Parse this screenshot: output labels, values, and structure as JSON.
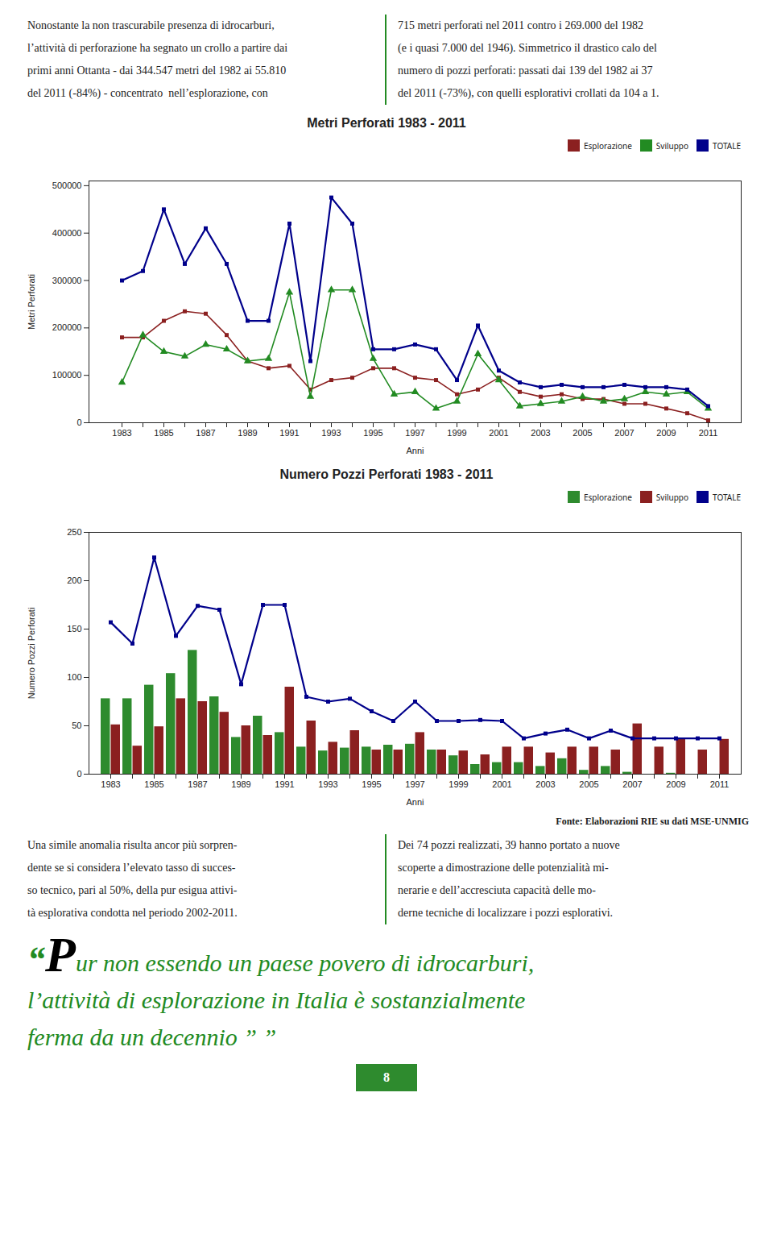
{
  "chart_data": [
    {
      "type": "line",
      "title": "Metri Perforati 1983 - 2011",
      "x_label": "Anni",
      "y_label": "Metri Perforati",
      "categories": [
        "1983",
        null,
        "1985",
        null,
        "1987",
        null,
        "1989",
        null,
        "1991",
        null,
        "1993",
        null,
        "1995",
        null,
        "1997",
        null,
        "1999",
        null,
        "2001",
        null,
        "2003",
        null,
        "2005",
        null,
        "2007",
        null,
        "2009",
        null,
        "2011"
      ],
      "series": [
        {
          "name": "Esplorazione",
          "color": "#8B2020",
          "marker": "square",
          "values": [
            180000,
            180000,
            215000,
            235000,
            230000,
            185000,
            130000,
            115000,
            120000,
            70000,
            90000,
            95000,
            115000,
            115000,
            95000,
            90000,
            60000,
            70000,
            95000,
            65000,
            55000,
            60000,
            50000,
            50000,
            40000,
            40000,
            30000,
            20000,
            5000
          ]
        },
        {
          "name": "Sviluppo",
          "color": "#228B22",
          "marker": "triangle",
          "values": [
            85000,
            185000,
            150000,
            140000,
            165000,
            155000,
            130000,
            135000,
            275000,
            55000,
            280000,
            280000,
            135000,
            60000,
            65000,
            30000,
            45000,
            145000,
            90000,
            35000,
            40000,
            45000,
            55000,
            45000,
            50000,
            65000,
            60000,
            65000,
            30000
          ]
        },
        {
          "name": "TOTALE",
          "color": "#00008B",
          "marker": "square",
          "values": [
            300000,
            320000,
            450000,
            335000,
            410000,
            335000,
            215000,
            215000,
            420000,
            130000,
            475000,
            420000,
            155000,
            155000,
            165000,
            155000,
            90000,
            205000,
            110000,
            85000,
            75000,
            80000,
            75000,
            75000,
            80000,
            75000,
            75000,
            70000,
            35000
          ]
        }
      ],
      "ylim": [
        0,
        510000
      ],
      "yticks": [
        0,
        100000,
        200000,
        300000,
        400000,
        500000
      ],
      "grid": false,
      "legend": "upper right",
      "annotations": [
        "Nonostante la non trascurabile presenza di idrocarburi,\nl’attività di perforazione ha segnato un crollo a partire dai\nprimi anni Ottanta - dai 344.547 metri del 1982 ai 55.810\ndel 2011 (-84%) - concentrato  nell’esplorazione, con",
        "715 metri perforati nel 2011 contro i 269.000 del 1982\n(e i quasi 7.000 del 1946). Simmetrico il drastico calo del\nnumero di pozzi perforati: passati dai 139 del 1982 ai 37\ndel 2011 (-73%), con quelli esplorativi crollati da 104 a 1."
      ]
    },
    {
      "type": "bar",
      "title": "Numero Pozzi Perforati 1983 - 2011",
      "x_label": "Anni",
      "y_label": "Numero Pozzi Perforati",
      "categories": [
        "1983",
        null,
        "1985",
        null,
        "1987",
        null,
        "1989",
        null,
        "1991",
        null,
        "1993",
        null,
        "1995",
        null,
        "1997",
        null,
        "1999",
        null,
        "2001",
        null,
        "2003",
        null,
        "2005",
        null,
        "2007",
        null,
        "2009",
        null,
        "2011"
      ],
      "series": [
        {
          "name": "Esplorazione",
          "type": "bar",
          "color": "#2E8B2E",
          "values": [
            78,
            78,
            92,
            104,
            128,
            80,
            38,
            60,
            43,
            28,
            24,
            27,
            28,
            30,
            31,
            25,
            19,
            10,
            12,
            12,
            8,
            16,
            4,
            8,
            2,
            0,
            1,
            0,
            0
          ]
        },
        {
          "name": "Sviluppo",
          "type": "bar",
          "color": "#8B2020",
          "values": [
            51,
            29,
            49,
            78,
            75,
            64,
            50,
            40,
            90,
            55,
            33,
            45,
            25,
            25,
            43,
            25,
            24,
            20,
            28,
            28,
            22,
            28,
            28,
            25,
            52,
            28,
            36,
            25,
            36
          ]
        },
        {
          "name": "TOTALE",
          "type": "line",
          "color": "#00008B",
          "marker": "square",
          "values": [
            157,
            135,
            224,
            143,
            174,
            170,
            93,
            175,
            175,
            80,
            75,
            78,
            65,
            55,
            75,
            55,
            55,
            56,
            55,
            37,
            42,
            46,
            37,
            45,
            37,
            37,
            37,
            37,
            37
          ]
        }
      ],
      "ylim": [
        0,
        250
      ],
      "yticks": [
        0,
        50,
        100,
        150,
        200,
        250
      ],
      "grid": false,
      "legend": "upper right",
      "annotations": [
        "Fonte: Elaborazioni RIE su dati MSE-UNMIG",
        "Una simile anomalia risulta ancor più sorpren-\ndente se si considera l’elevato tasso di succes-\nso tecnico, pari al 50%, della pur esigua attivi-\ntà esplorativa condotta nel periodo 2002-2011.",
        "Dei 74 pozzi realizzati, 39 hanno portato a nuove\nscoperte a dimostrazione delle potenzialità mi-\nnerarie e dell’accresciuta capacità delle mo-\nderne tecniche di localizzare i pozzi esplorativi.",
        "“Pur non essendo un paese povero di idrocarburi,\nl’attività di esplorazione in Italia è sostanzialmente\nferma da un decennio ” ”",
        "8"
      ]
    }
  ]
}
